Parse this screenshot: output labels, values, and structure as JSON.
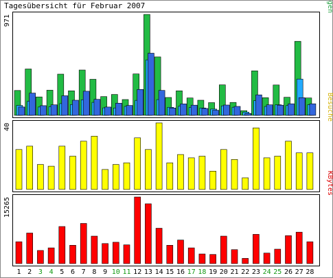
{
  "chart_data": {
    "type": "bar",
    "title": "Tagesübersicht für Februar 2007",
    "categories": [
      "1",
      "2",
      "3",
      "4",
      "5",
      "6",
      "7",
      "8",
      "9",
      "10",
      "11",
      "12",
      "13",
      "14",
      "15",
      "16",
      "17",
      "18",
      "19",
      "20",
      "21",
      "22",
      "23",
      "24",
      "25",
      "26",
      "27",
      "28"
    ],
    "weekend_days": [
      "3",
      "4",
      "10",
      "11",
      "17",
      "18",
      "24",
      "25"
    ],
    "panels": [
      {
        "name": "hits",
        "ymax_label": "971",
        "ymax": 971,
        "legend": [
          {
            "text": "Seiten",
            "color": "#3366cc"
          },
          {
            "text": "/",
            "color": "#000000"
          },
          {
            "text": "Dateien",
            "color": "#1eaaff"
          },
          {
            "text": "/",
            "color": "#000000"
          },
          {
            "text": "Anfragen",
            "color": "#1e9e3c"
          }
        ],
        "series": [
          {
            "name": "Anfragen",
            "color": "#22bb44",
            "values": [
              239,
              446,
              177,
              242,
              396,
              236,
              436,
              347,
              180,
              201,
              152,
              398,
              971,
              562,
              172,
              236,
              167,
              145,
              122,
              293,
              124,
              45,
              428,
              170,
              292,
              174,
              712,
              167
            ]
          },
          {
            "name": "Dateien",
            "color": "#22aaff",
            "values": [
              95,
              136,
              80,
              83,
              113,
              104,
              150,
              125,
              72,
              71,
              86,
              144,
              534,
              151,
              77,
              87,
              76,
              71,
              60,
              91,
              78,
              31,
              141,
              85,
              102,
              94,
              349,
              102
            ]
          },
          {
            "name": "Seiten",
            "color": "#3366dd",
            "values": [
              80,
              214,
              93,
              101,
              188,
              145,
              232,
              154,
              80,
              117,
              95,
              249,
              598,
              240,
              71,
              110,
              98,
              66,
              49,
              99,
              86,
              18,
              197,
              101,
              98,
              111,
              170,
              111
            ]
          }
        ]
      },
      {
        "name": "visits",
        "ymax_label": "40",
        "ymax": 40,
        "legend": [
          {
            "text": "Besuche",
            "color": "#d4b000"
          }
        ],
        "series": [
          {
            "name": "Besuche",
            "color": "#ffff00",
            "values": [
              24,
              26,
              15,
              14,
              26,
              20,
              29,
              32,
              12,
              15,
              16,
              31,
              24,
              40,
              16,
              21,
              19,
              20,
              11,
              24,
              18,
              7,
              37,
              19,
              20,
              29,
              22,
              22
            ]
          }
        ]
      },
      {
        "name": "kbytes",
        "ymax_label": "15265",
        "ymax": 15265,
        "legend": [
          {
            "text": "KBytes",
            "color": "#dd0000"
          }
        ],
        "series": [
          {
            "name": "KBytes",
            "color": "#ff0000",
            "values": [
              5000,
              7000,
              3000,
              3600,
              8500,
              4200,
              9200,
              6300,
              4600,
              4900,
              4300,
              15265,
              13700,
              8100,
              4200,
              5400,
              3600,
              2200,
              2100,
              6300,
              3200,
              1200,
              6700,
              2400,
              3300,
              6400,
              7200,
              5000
            ]
          }
        ]
      }
    ]
  }
}
